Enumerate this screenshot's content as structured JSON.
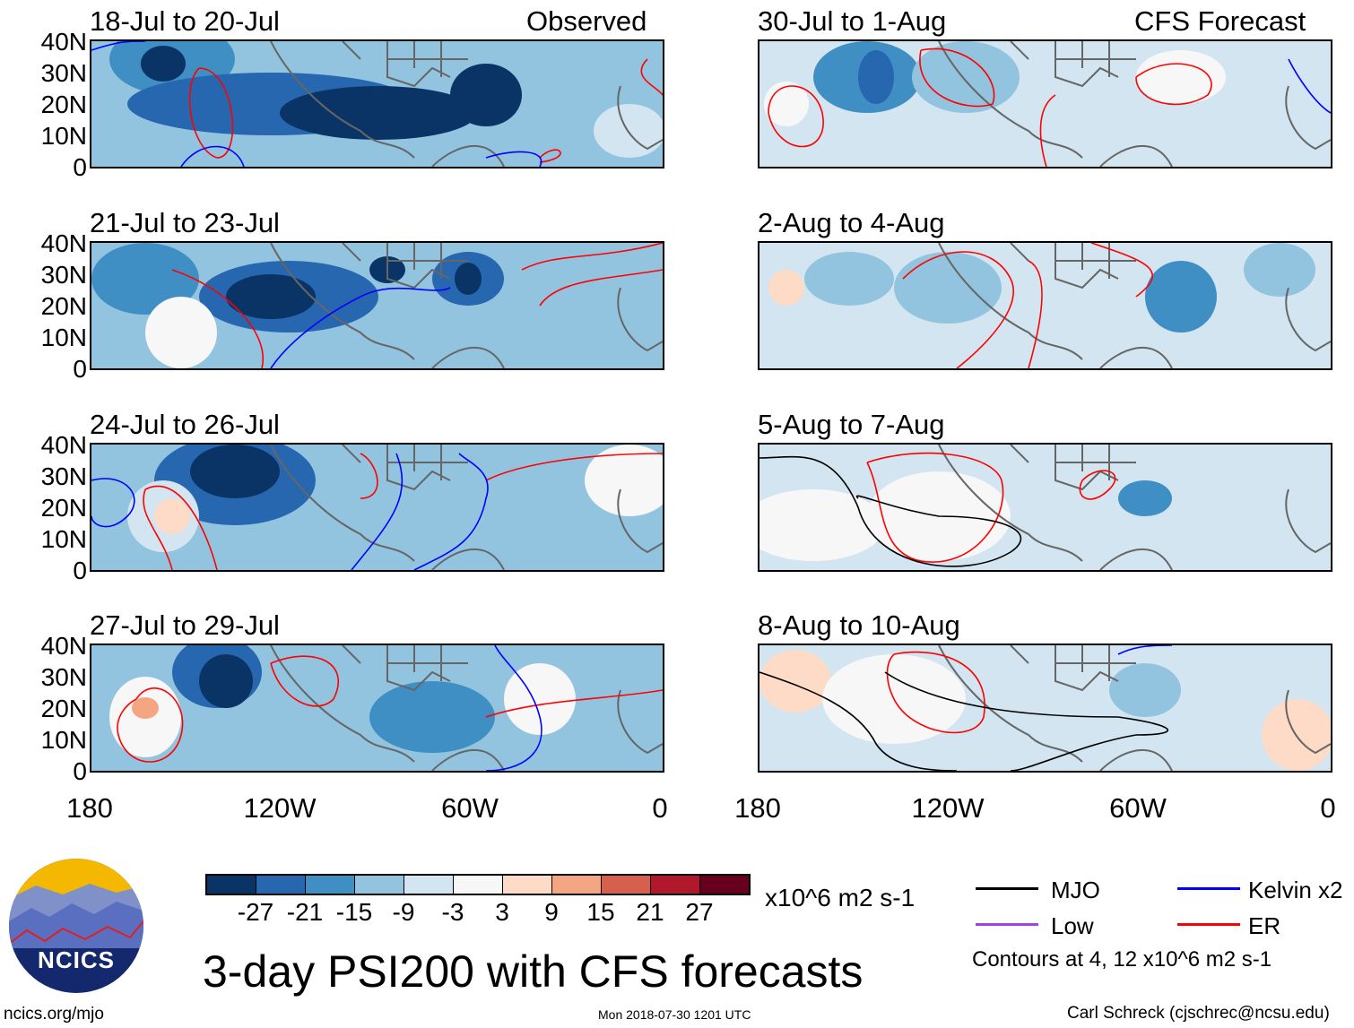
{
  "labels": {
    "observed": "Observed",
    "forecast": "CFS Forecast"
  },
  "panels_left": [
    "18-Jul to 20-Jul",
    "21-Jul to 23-Jul",
    "24-Jul to 26-Jul",
    "27-Jul to 29-Jul"
  ],
  "panels_right": [
    "30-Jul to 1-Aug",
    "2-Aug to 4-Aug",
    "5-Aug to 7-Aug",
    "8-Aug to 10-Aug"
  ],
  "lat_ticks": [
    "40N",
    "30N",
    "20N",
    "10N",
    "0"
  ],
  "lon_ticks": [
    "180",
    "120W",
    "60W",
    "0"
  ],
  "colorbar": {
    "colors": [
      "#0b3466",
      "#2767b0",
      "#3f8fc4",
      "#93c4df",
      "#d2e5f0",
      "#f7f7f7",
      "#fddbc7",
      "#f4a582",
      "#d6604d",
      "#b2182b",
      "#67001f"
    ],
    "labels": [
      "-27",
      "-21",
      "-15",
      "-9",
      "-3",
      "3",
      "9",
      "15",
      "21",
      "27"
    ],
    "units": "x10^6 m2 s-1"
  },
  "title": "3-day PSI200 with CFS forecasts",
  "timestamp": "Mon 2018-07-30 1201 UTC",
  "legend": {
    "items": [
      {
        "label": "MJO",
        "color": "#000000"
      },
      {
        "label": "Kelvin x2",
        "color": "#0000ff"
      },
      {
        "label": "Low",
        "color": "#a040f0"
      },
      {
        "label": "ER",
        "color": "#ff0000"
      }
    ],
    "contours": "Contours at 4, 12 x10^6 m2 s-1"
  },
  "logo": {
    "text": "NCICS"
  },
  "url": "ncics.org/mjo",
  "author": "Carl Schreck (cjschrec@ncsu.edu)"
}
